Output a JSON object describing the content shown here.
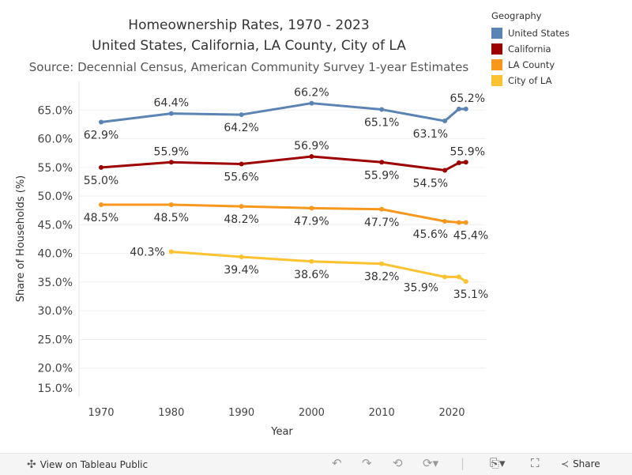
{
  "chart_data": {
    "type": "line",
    "title": "Homeownership Rates, 1970 - 2023",
    "subtitle": "United States, California, LA County, City of LA",
    "source": "Source: Decennial Census, American Community Survey 1-year Estimates",
    "xlabel": "Year",
    "ylabel": "Share of Households (%)",
    "ylim": [
      15,
      70
    ],
    "xlim": [
      1966,
      2028
    ],
    "x_ticks": [
      1970,
      1980,
      1990,
      2000,
      2010,
      2020
    ],
    "y_ticks": [
      "15.0%",
      "20.0%",
      "25.0%",
      "30.0%",
      "35.0%",
      "40.0%",
      "45.0%",
      "50.0%",
      "55.0%",
      "60.0%",
      "65.0%"
    ],
    "y_tick_values": [
      15,
      20,
      25,
      30,
      35,
      40,
      45,
      50,
      55,
      60,
      65
    ],
    "grid": true,
    "legend_title": "Geography",
    "legend_position": "top-right",
    "series": [
      {
        "name": "United States",
        "color": "#5b84b5",
        "x": [
          1970,
          1980,
          1990,
          2000,
          2010,
          2019,
          2021,
          2022
        ],
        "values": [
          62.9,
          64.4,
          64.2,
          66.2,
          65.1,
          63.1,
          65.2,
          65.2
        ],
        "labels": [
          "62.9%",
          "64.4%",
          "64.2%",
          "66.2%",
          "65.1%",
          "63.1%",
          null,
          "65.2%"
        ],
        "label_pos": [
          "below",
          "above",
          "below",
          "above",
          "below",
          "below",
          null,
          "above"
        ]
      },
      {
        "name": "California",
        "color": "#9c0000",
        "x": [
          1970,
          1980,
          1990,
          2000,
          2010,
          2019,
          2021,
          2022
        ],
        "values": [
          55.0,
          55.9,
          55.6,
          56.9,
          55.9,
          54.5,
          55.8,
          55.9
        ],
        "labels": [
          "55.0%",
          "55.9%",
          "55.6%",
          "56.9%",
          "55.9%",
          "54.5%",
          null,
          "55.9%"
        ],
        "label_pos": [
          "below",
          "above",
          "below",
          "above",
          "below",
          "below",
          null,
          "above"
        ]
      },
      {
        "name": "LA County",
        "color": "#f7981d",
        "x": [
          1970,
          1980,
          1990,
          2000,
          2010,
          2019,
          2021,
          2022
        ],
        "values": [
          48.5,
          48.5,
          48.2,
          47.9,
          47.7,
          45.6,
          45.4,
          45.4
        ],
        "labels": [
          "48.5%",
          "48.5%",
          "48.2%",
          "47.9%",
          "47.7%",
          "45.6%",
          null,
          "45.4%"
        ],
        "label_pos": [
          "below",
          "below",
          "below",
          "below",
          "below",
          "below",
          null,
          "below"
        ]
      },
      {
        "name": "City of LA",
        "color": "#fcc230",
        "x": [
          1980,
          1990,
          2000,
          2010,
          2019,
          2021,
          2022
        ],
        "values": [
          40.3,
          39.4,
          38.6,
          38.2,
          35.9,
          35.9,
          35.1
        ],
        "labels": [
          "40.3%",
          "39.4%",
          "38.6%",
          "38.2%",
          "35.9%",
          null,
          "35.1%"
        ],
        "label_pos": [
          "left",
          "below",
          "below",
          "below",
          "left",
          null,
          "below"
        ]
      }
    ]
  },
  "footer": {
    "view_label": "View on Tableau Public",
    "share_label": "Share"
  }
}
